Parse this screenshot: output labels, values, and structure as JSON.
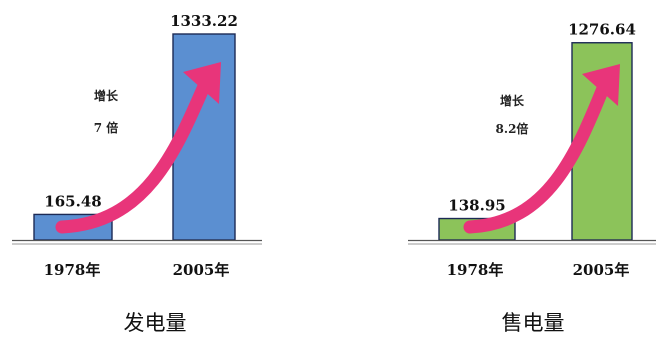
{
  "chart_data": [
    {
      "type": "bar",
      "title": "发电量",
      "categories": [
        "1978年",
        "2005年"
      ],
      "values": [
        165.48,
        1333.22
      ],
      "value_labels": [
        "165.48",
        "1333.22"
      ],
      "growth_label": [
        "增长",
        "7 倍"
      ],
      "bar_color": "#5b8fd1",
      "arrow_color": "#e8357a",
      "ylim": [
        0,
        1333.22
      ]
    },
    {
      "type": "bar",
      "title": "售电量",
      "categories": [
        "1978年",
        "2005年"
      ],
      "values": [
        138.95,
        1276.64
      ],
      "value_labels": [
        "138.95",
        "1276.64"
      ],
      "growth_label": [
        "增长",
        "8.2倍"
      ],
      "bar_color": "#8cc35a",
      "arrow_color": "#e8357a",
      "ylim": [
        0,
        1333.22
      ]
    }
  ]
}
